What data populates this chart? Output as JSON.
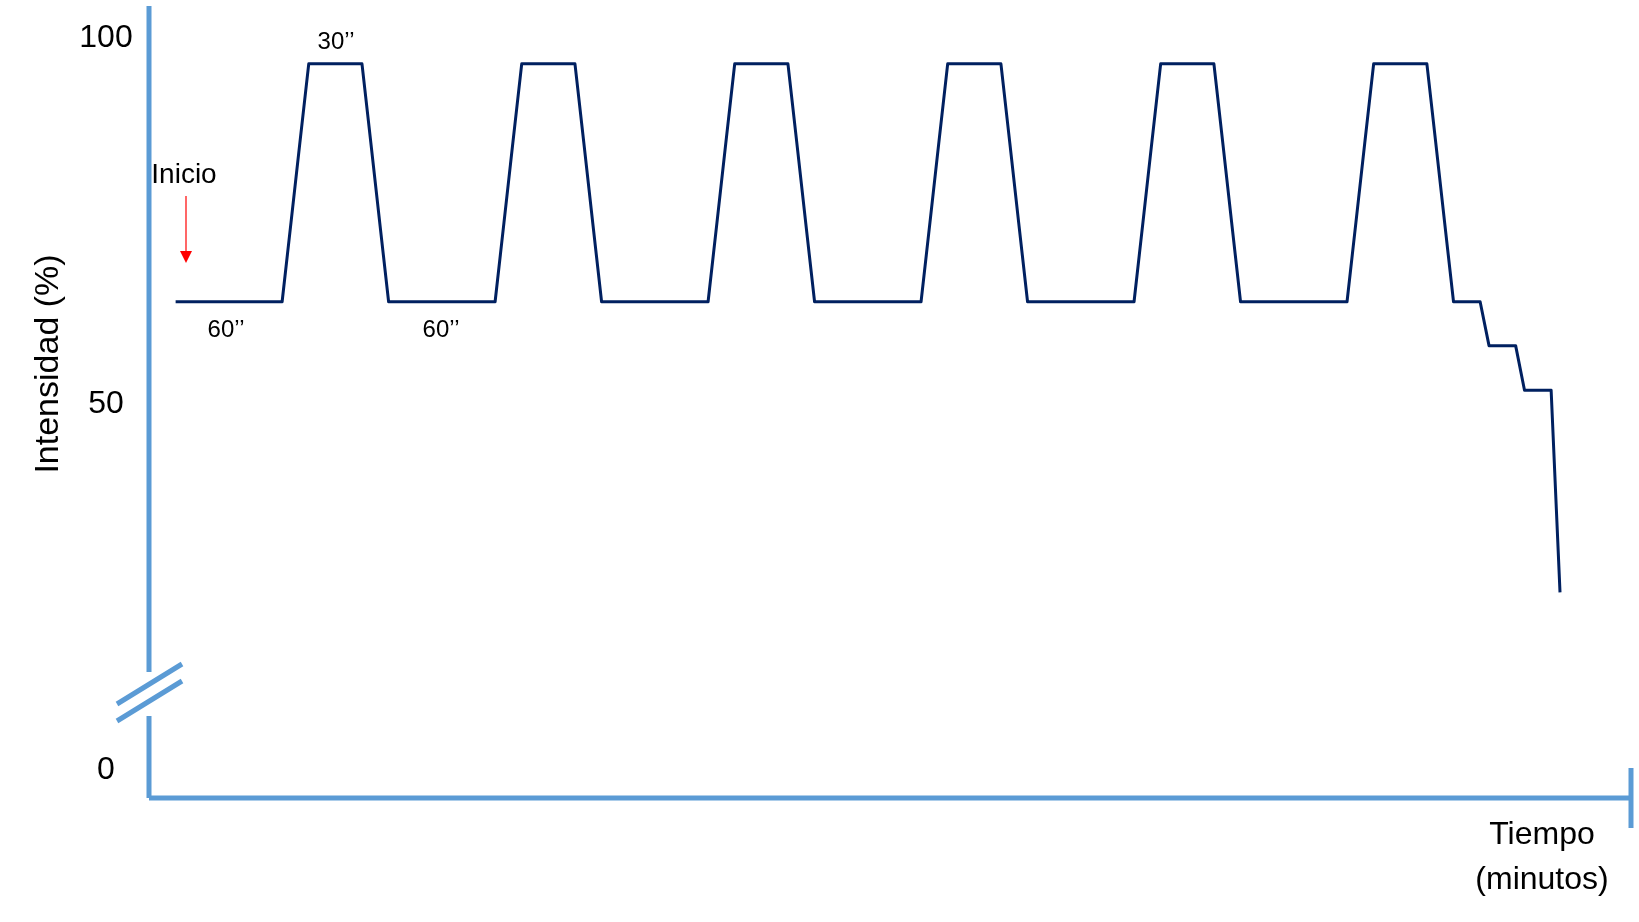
{
  "chart_data": {
    "type": "line",
    "xlabel": "Tiempo\n(minutos)",
    "ylabel": "Intensidad (%)",
    "categories": [
      null,
      null,
      null,
      null,
      null,
      null,
      null,
      null,
      null,
      null,
      null,
      null,
      null,
      null,
      null,
      null,
      null,
      null,
      null,
      null,
      null,
      null,
      null,
      null,
      null,
      null,
      null,
      null,
      null,
      null,
      null,
      null,
      null,
      null,
      null,
      null,
      null,
      null,
      null,
      null,
      null,
      null,
      null,
      null,
      null,
      null,
      null,
      null,
      null,
      null,
      null,
      null,
      null,
      null,
      null,
      null,
      null,
      null,
      null,
      null,
      null,
      null,
      null,
      null,
      null,
      null,
      null,
      null,
      null,
      null,
      null,
      null,
      null,
      null,
      null,
      null,
      null,
      null,
      null,
      null,
      null,
      null,
      null,
      null,
      null,
      null,
      null,
      null,
      null,
      null,
      null,
      null,
      null,
      null,
      null,
      null,
      null,
      null,
      null,
      null,
      null,
      null,
      null,
      null,
      null,
      null,
      null,
      null,
      null,
      null,
      null,
      null,
      null,
      null,
      null,
      null,
      null,
      null,
      null,
      null,
      null,
      null,
      null,
      null,
      null,
      null,
      null,
      null,
      null,
      null,
      null,
      null,
      null,
      null,
      null,
      null,
      null,
      null,
      null,
      null,
      null,
      null,
      null,
      null,
      null,
      null,
      null,
      null,
      null,
      null,
      null,
      null,
      null,
      null,
      null,
      null,
      null,
      null,
      null,
      null,
      null,
      null,
      null,
      null,
      null,
      null,
      null,
      null
    ],
    "series": [
      {
        "color": "#002060",
        "values": [
          null,
          null,
          null,
          63.7,
          63.7,
          63.7,
          63.7,
          63.7,
          63.7,
          63.7,
          63.7,
          63.7,
          63.7,
          63.7,
          63.7,
          63.7,
          74.5,
          85.4,
          96.2,
          96.2,
          96.2,
          96.2,
          96.2,
          96.2,
          96.2,
          85.4,
          74.5,
          63.7,
          63.7,
          63.7,
          63.7,
          63.7,
          63.7,
          63.7,
          63.7,
          63.7,
          63.7,
          63.7,
          63.7,
          63.7,
          74.5,
          85.4,
          96.2,
          96.2,
          96.2,
          96.2,
          96.2,
          96.2,
          96.2,
          85.4,
          74.5,
          63.7,
          63.7,
          63.7,
          63.7,
          63.7,
          63.7,
          63.7,
          63.7,
          63.7,
          63.7,
          63.7,
          63.7,
          63.7,
          74.5,
          85.4,
          96.2,
          96.2,
          96.2,
          96.2,
          96.2,
          96.2,
          96.2,
          85.4,
          74.5,
          63.7,
          63.7,
          63.7,
          63.7,
          63.7,
          63.7,
          63.7,
          63.7,
          63.7,
          63.7,
          63.7,
          63.7,
          63.7,
          74.5,
          85.4,
          96.2,
          96.2,
          96.2,
          96.2,
          96.2,
          96.2,
          96.2,
          85.4,
          74.5,
          63.7,
          63.7,
          63.7,
          63.7,
          63.7,
          63.7,
          63.7,
          63.7,
          63.7,
          63.7,
          63.7,
          63.7,
          63.7,
          74.5,
          85.4,
          96.2,
          96.2,
          96.2,
          96.2,
          96.2,
          96.2,
          96.2,
          85.4,
          74.5,
          63.7,
          63.7,
          63.7,
          63.7,
          63.7,
          63.7,
          63.7,
          63.7,
          63.7,
          63.7,
          63.7,
          63.7,
          63.7,
          74.5,
          85.4,
          96.2,
          96.2,
          96.2,
          96.2,
          96.2,
          96.2,
          96.2,
          85.4,
          74.5,
          63.7,
          63.7,
          63.7,
          63.7,
          57.7,
          57.7,
          57.7,
          57.7,
          51.6,
          51.6,
          51.6,
          51.6,
          24,
          null,
          null,
          null,
          null,
          null,
          null,
          null,
          null
        ]
      }
    ],
    "ylim": [
      -4.1,
      104.1
    ],
    "yticks": [
      0,
      50,
      100
    ],
    "tick_labels": "y",
    "annotations": [
      "30’’",
      "Inicio",
      "60’’",
      "60’’"
    ]
  }
}
